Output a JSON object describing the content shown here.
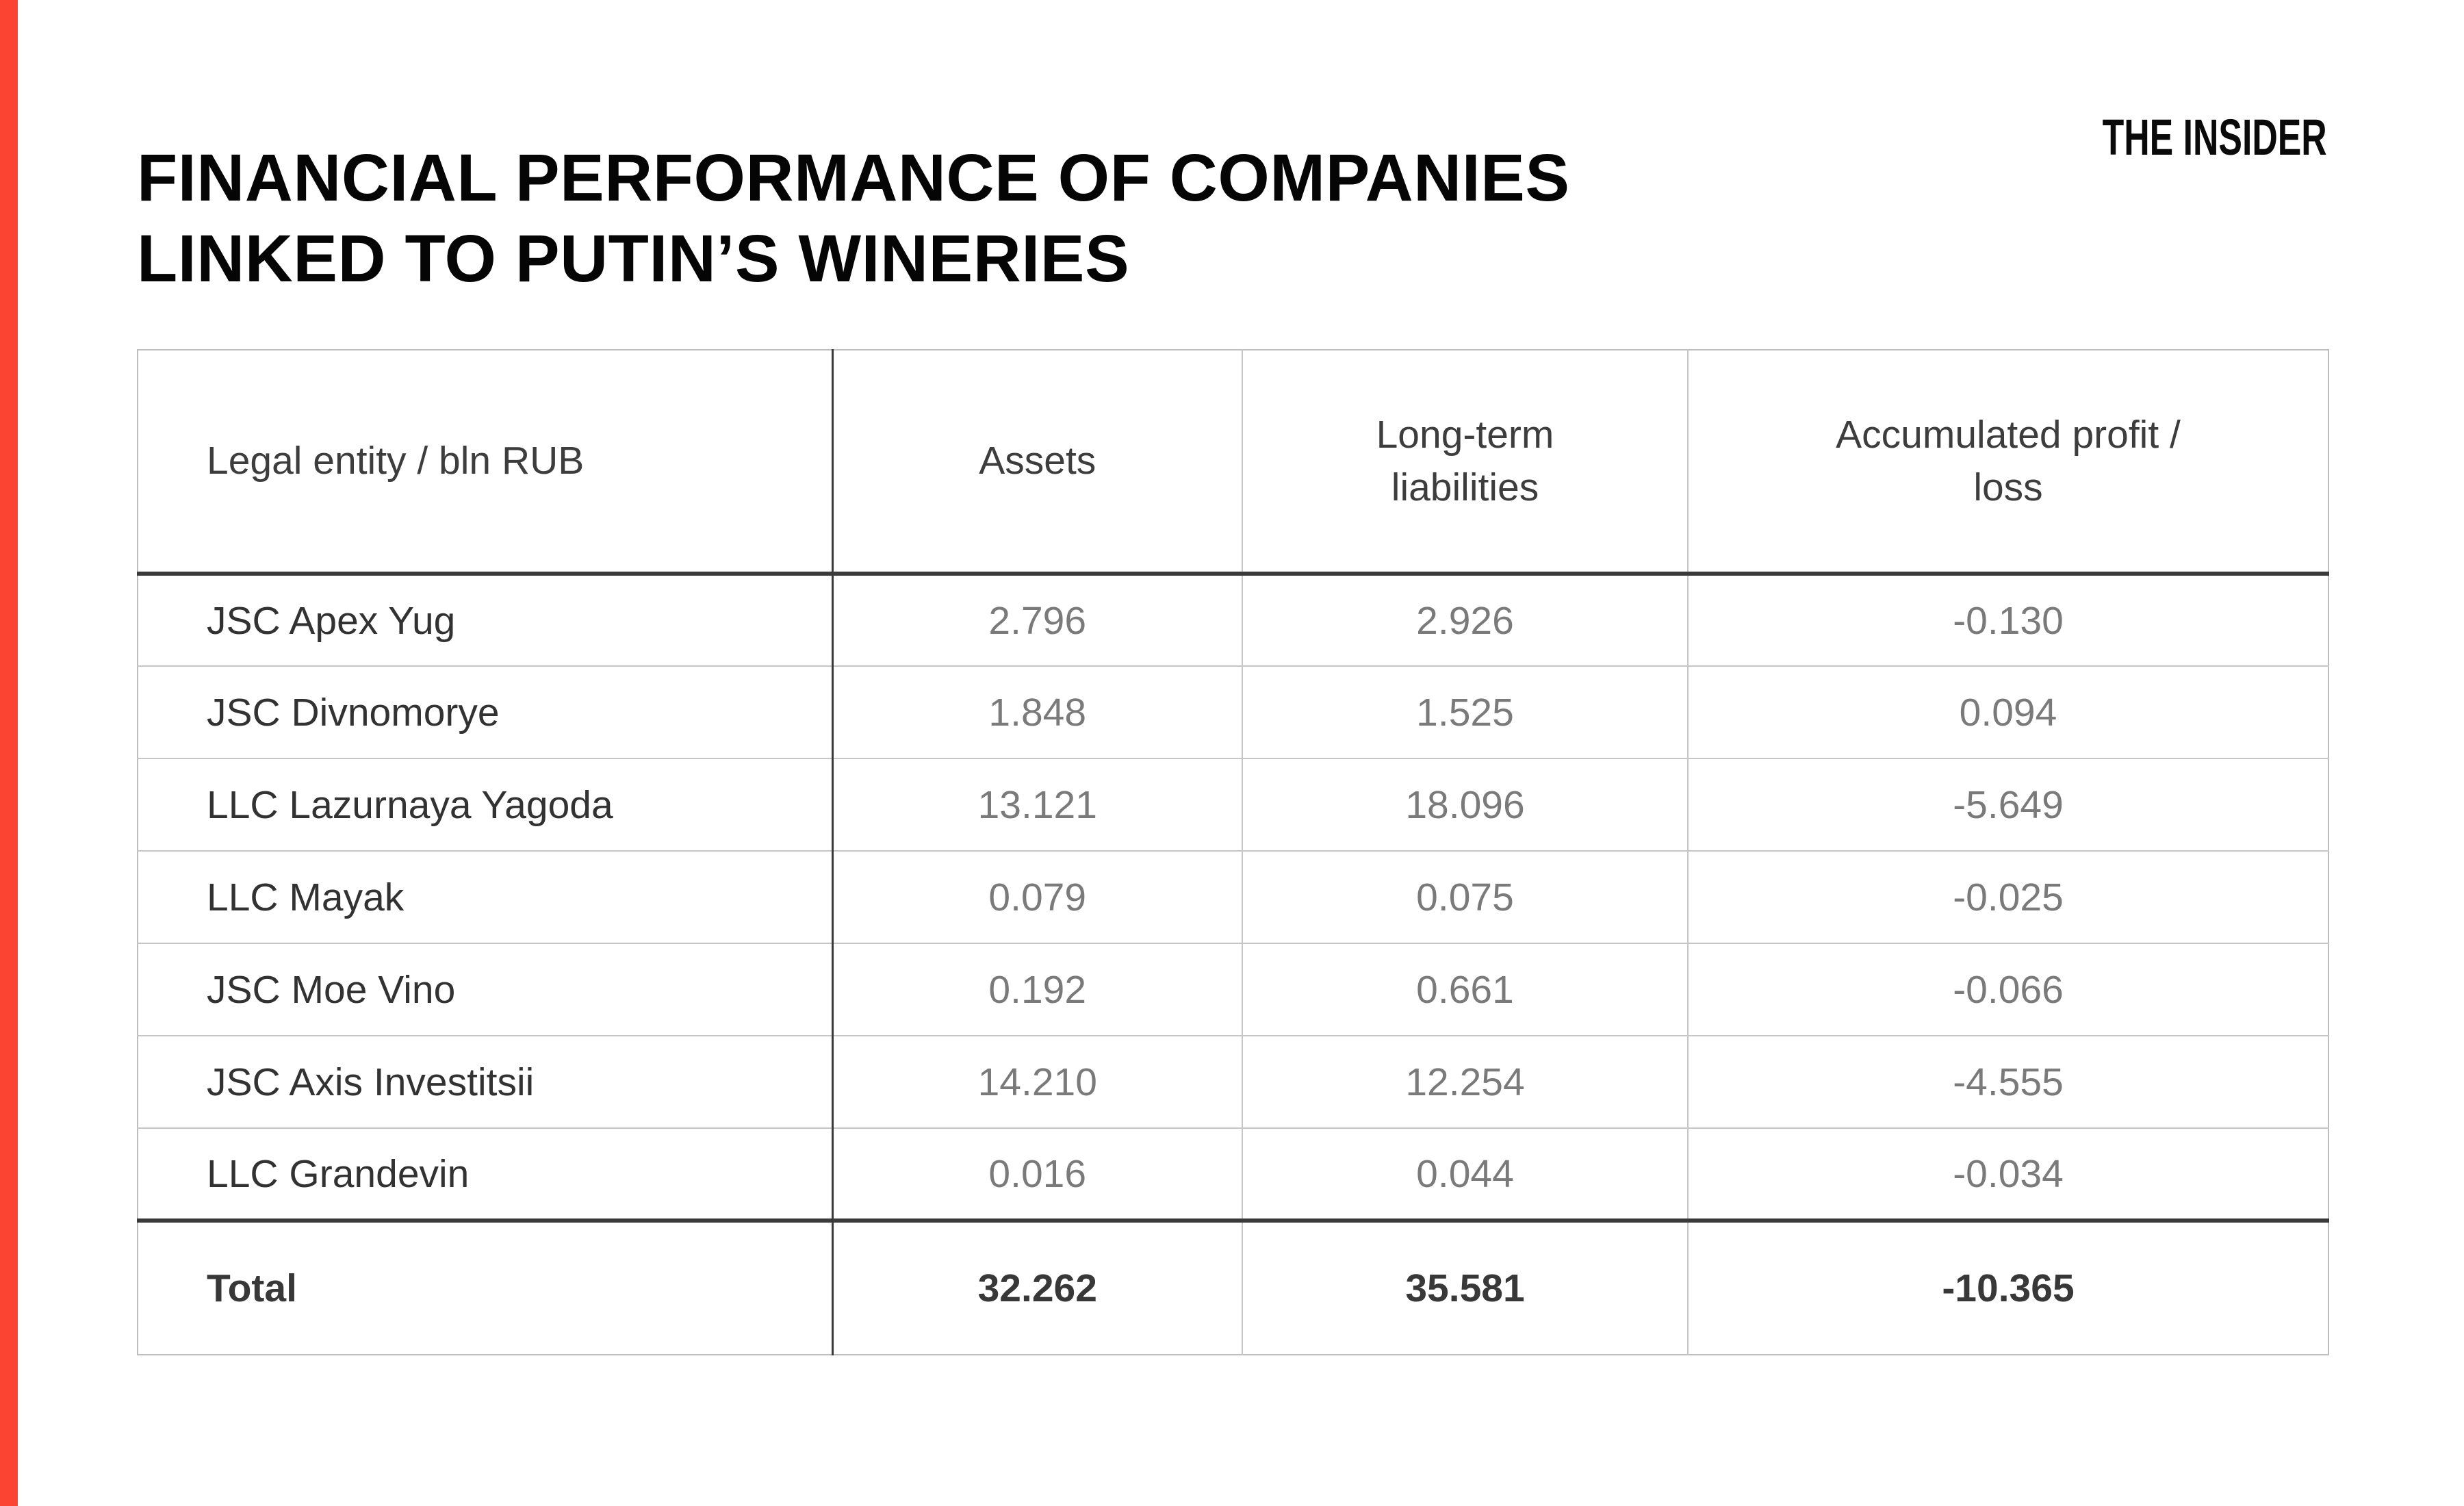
{
  "page": {
    "title": "FINANCIAL PERFORMANCE OF COMPANIES\nLINKED TO PUTIN’S WINERIES",
    "brand": "THE INSIDER"
  },
  "colors": {
    "accent_red": "#fc4433",
    "dark_line": "#3a3a3a",
    "light_line": "#c6c6c6",
    "value_gray": "#7a7a7a",
    "text_dark": "#323232"
  },
  "table": {
    "headers": {
      "entity": "Legal entity / bln RUB",
      "assets": "Assets",
      "liabilities": "Long-term\nliabilities",
      "profit": "Accumulated profit /\nloss"
    },
    "rows": [
      {
        "entity": "JSC Apex Yug",
        "assets": "2.796",
        "liabilities": "2.926",
        "profit": "-0.130"
      },
      {
        "entity": "JSC Divnomorye",
        "assets": "1.848",
        "liabilities": "1.525",
        "profit": "0.094"
      },
      {
        "entity": "LLC Lazurnaya Yagoda",
        "assets": "13.121",
        "liabilities": "18.096",
        "profit": "-5.649"
      },
      {
        "entity": "LLC Mayak",
        "assets": "0.079",
        "liabilities": "0.075",
        "profit": "-0.025"
      },
      {
        "entity": "JSC Moe Vino",
        "assets": "0.192",
        "liabilities": "0.661",
        "profit": "-0.066"
      },
      {
        "entity": "JSC Axis Investitsii",
        "assets": "14.210",
        "liabilities": "12.254",
        "profit": "-4.555"
      },
      {
        "entity": "LLC Grandevin",
        "assets": "0.016",
        "liabilities": "0.044",
        "profit": "-0.034"
      }
    ],
    "total": {
      "label": "Total",
      "assets": "32.262",
      "liabilities": "35.581",
      "profit": "-10.365"
    }
  },
  "chart_data": {
    "type": "table",
    "title": "Financial performance of companies linked to Putin's wineries",
    "unit": "bln RUB",
    "columns": [
      "Legal entity / bln RUB",
      "Assets",
      "Long-term liabilities",
      "Accumulated profit / loss"
    ],
    "rows": [
      {
        "entity": "JSC Apex Yug",
        "assets": 2.796,
        "long_term_liabilities": 2.926,
        "accumulated_profit_loss": -0.13
      },
      {
        "entity": "JSC Divnomorye",
        "assets": 1.848,
        "long_term_liabilities": 1.525,
        "accumulated_profit_loss": 0.094
      },
      {
        "entity": "LLC Lazurnaya Yagoda",
        "assets": 13.121,
        "long_term_liabilities": 18.096,
        "accumulated_profit_loss": -5.649
      },
      {
        "entity": "LLC Mayak",
        "assets": 0.079,
        "long_term_liabilities": 0.075,
        "accumulated_profit_loss": -0.025
      },
      {
        "entity": "JSC Moe Vino",
        "assets": 0.192,
        "long_term_liabilities": 0.661,
        "accumulated_profit_loss": -0.066
      },
      {
        "entity": "JSC Axis Investitsii",
        "assets": 14.21,
        "long_term_liabilities": 12.254,
        "accumulated_profit_loss": -4.555
      },
      {
        "entity": "LLC Grandevin",
        "assets": 0.016,
        "long_term_liabilities": 0.044,
        "accumulated_profit_loss": -0.034
      }
    ],
    "total": {
      "entity": "Total",
      "assets": 32.262,
      "long_term_liabilities": 35.581,
      "accumulated_profit_loss": -10.365
    }
  }
}
